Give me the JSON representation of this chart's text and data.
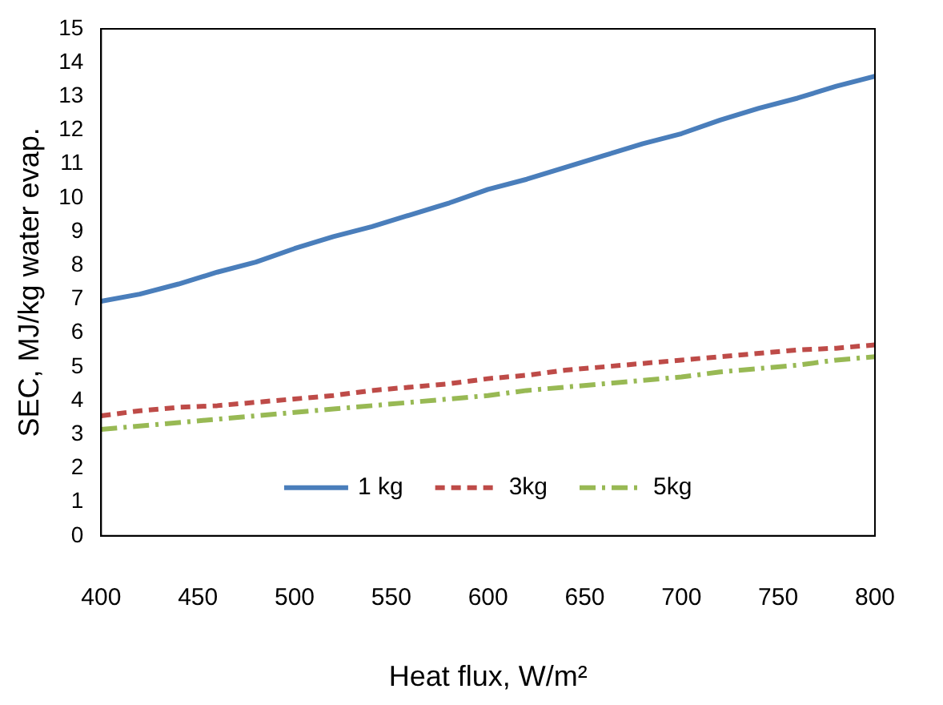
{
  "chart_data": {
    "type": "line",
    "xlabel": "Heat flux, W/m²",
    "ylabel": "SEC, MJ/kg water evap.",
    "x": [
      400,
      420,
      440,
      460,
      480,
      500,
      520,
      540,
      560,
      580,
      600,
      620,
      640,
      660,
      680,
      700,
      720,
      740,
      760,
      780,
      800
    ],
    "xlim": [
      400,
      800
    ],
    "xticks": [
      400,
      450,
      500,
      550,
      600,
      650,
      700,
      750,
      800
    ],
    "ylim": [
      0,
      15
    ],
    "yticks": [
      0,
      1,
      2,
      3,
      4,
      5,
      6,
      7,
      8,
      9,
      10,
      11,
      12,
      13,
      14,
      15
    ],
    "grid": false,
    "legend": "bottom",
    "marker": "none",
    "series": [
      {
        "name": "1 kg",
        "color": "#4a7ebb",
        "line_style": "solid",
        "values": [
          6.94,
          7.15,
          7.45,
          7.8,
          8.1,
          8.5,
          8.85,
          9.15,
          9.5,
          9.85,
          10.25,
          10.55,
          10.9,
          11.25,
          11.6,
          11.9,
          12.3,
          12.65,
          12.95,
          13.3,
          13.6
        ]
      },
      {
        "name": "3kg",
        "color": "#be4b48",
        "line_style": "dashed",
        "values": [
          3.55,
          3.7,
          3.8,
          3.85,
          3.95,
          4.05,
          4.15,
          4.3,
          4.4,
          4.5,
          4.65,
          4.75,
          4.9,
          5.0,
          5.1,
          5.2,
          5.3,
          5.4,
          5.5,
          5.55,
          5.65
        ]
      },
      {
        "name": "5kg",
        "color": "#98b954",
        "line_style": "dashdot",
        "values": [
          3.15,
          3.25,
          3.35,
          3.45,
          3.55,
          3.65,
          3.75,
          3.85,
          3.95,
          4.05,
          4.15,
          4.3,
          4.4,
          4.5,
          4.6,
          4.7,
          4.85,
          4.95,
          5.05,
          5.2,
          5.3
        ]
      }
    ]
  }
}
